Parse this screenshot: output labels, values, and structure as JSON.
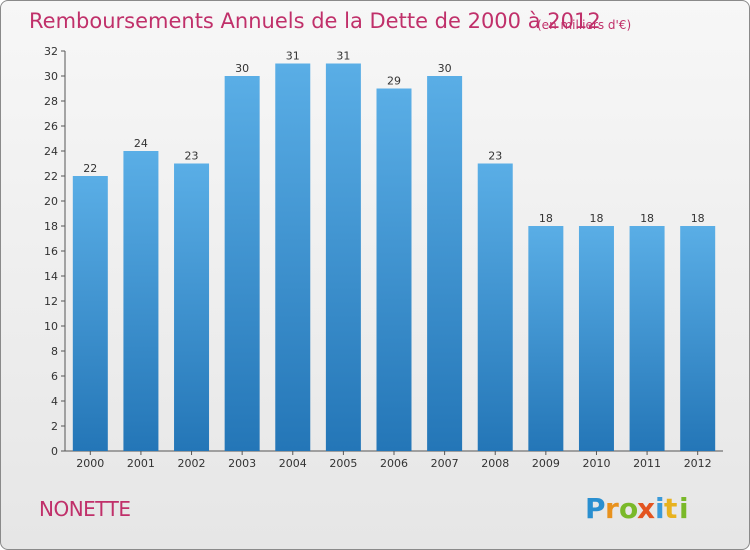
{
  "title": "Remboursements Annuels de la Dette de 2000 à 2012",
  "unit": "(en milliers d'€)",
  "commune": "NONETTE",
  "logo_text": "Proxiti",
  "colors": {
    "title": "#c0306a",
    "bar_top": "#5aaee6",
    "bar_bottom": "#2476b7"
  },
  "chart_data": {
    "type": "bar",
    "title": "Remboursements Annuels de la Dette de 2000 à 2012",
    "categories": [
      "2000",
      "2001",
      "2002",
      "2003",
      "2004",
      "2005",
      "2006",
      "2007",
      "2008",
      "2009",
      "2010",
      "2011",
      "2012"
    ],
    "values": [
      22,
      24,
      23,
      30,
      31,
      31,
      29,
      30,
      23,
      18,
      18,
      18,
      18
    ],
    "ylim": [
      0,
      32
    ],
    "yticks": [
      0,
      2,
      4,
      6,
      8,
      10,
      12,
      14,
      16,
      18,
      20,
      22,
      24,
      26,
      28,
      30,
      32
    ],
    "grid": false,
    "data_labels": true
  }
}
